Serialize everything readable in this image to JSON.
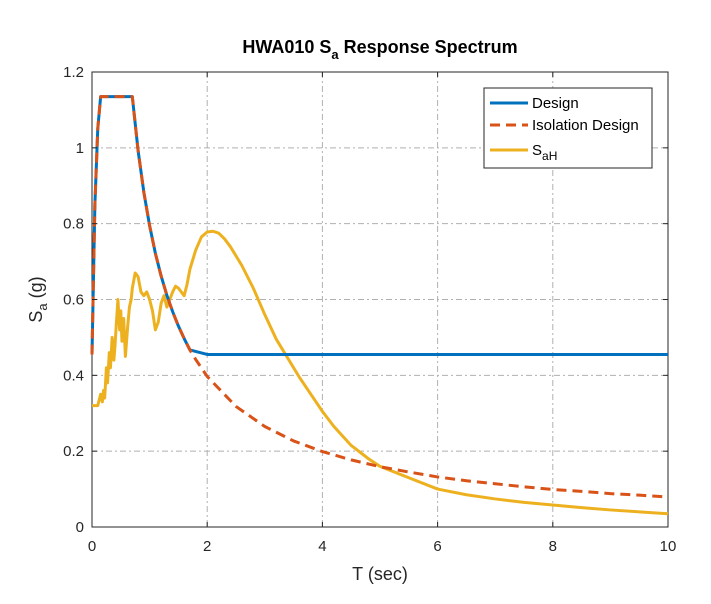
{
  "chart_data": {
    "type": "line",
    "title": {
      "main": "HWA010 S",
      "sub": "a",
      "rest": " Response Spectrum"
    },
    "xlabel": "T (sec)",
    "ylabel": {
      "main": "S",
      "sub": "a",
      "rest": " (g)"
    },
    "xlim": [
      0,
      10
    ],
    "ylim": [
      0,
      1.2
    ],
    "xticks": [
      0,
      2,
      4,
      6,
      8,
      10
    ],
    "yticks": [
      0,
      0.2,
      0.4,
      0.6,
      0.8,
      1,
      1.2
    ],
    "xtick_labels": [
      "0",
      "2",
      "4",
      "6",
      "8",
      "10"
    ],
    "ytick_labels": [
      "0",
      "0.2",
      "0.4",
      "0.6",
      "0.8",
      "1",
      "1.2"
    ],
    "grid": true,
    "legend_position": "top-right",
    "series": [
      {
        "name": "Design",
        "color": "#0072BD",
        "dash": "solid",
        "x": [
          0,
          0.05,
          0.1,
          0.15,
          0.2,
          0.3,
          0.4,
          0.5,
          0.6,
          0.7,
          0.8,
          0.9,
          1.0,
          1.1,
          1.2,
          1.3,
          1.4,
          1.5,
          1.6,
          1.7,
          2,
          3,
          4,
          5,
          6,
          7,
          8,
          9,
          10
        ],
        "y": [
          0.455,
          0.85,
          1.05,
          1.135,
          1.135,
          1.135,
          1.135,
          1.135,
          1.135,
          1.135,
          0.993,
          0.883,
          0.795,
          0.722,
          0.662,
          0.611,
          0.568,
          0.53,
          0.497,
          0.467,
          0.455,
          0.455,
          0.455,
          0.455,
          0.455,
          0.455,
          0.455,
          0.455,
          0.455
        ]
      },
      {
        "name": "Isolation Design",
        "color": "#D95319",
        "dash": "dashed",
        "x": [
          0,
          0.05,
          0.1,
          0.15,
          0.2,
          0.3,
          0.4,
          0.5,
          0.6,
          0.7,
          0.8,
          0.9,
          1.0,
          1.1,
          1.2,
          1.3,
          1.4,
          1.5,
          1.6,
          1.7,
          1.8,
          2,
          2.5,
          3,
          3.5,
          4,
          4.5,
          5,
          5.5,
          6,
          6.5,
          7,
          7.5,
          8,
          8.5,
          9,
          9.5,
          10
        ],
        "y": [
          0.455,
          0.85,
          1.05,
          1.135,
          1.135,
          1.135,
          1.135,
          1.135,
          1.135,
          1.135,
          0.993,
          0.883,
          0.795,
          0.722,
          0.662,
          0.611,
          0.568,
          0.53,
          0.497,
          0.467,
          0.442,
          0.397,
          0.318,
          0.265,
          0.227,
          0.199,
          0.177,
          0.159,
          0.145,
          0.132,
          0.122,
          0.114,
          0.106,
          0.099,
          0.094,
          0.088,
          0.084,
          0.079
        ]
      },
      {
        "name": "S",
        "name_sub": "aH",
        "color": "#EDB120",
        "dash": "solid",
        "x": [
          0,
          0.1,
          0.15,
          0.18,
          0.2,
          0.22,
          0.25,
          0.27,
          0.3,
          0.32,
          0.35,
          0.38,
          0.4,
          0.42,
          0.45,
          0.48,
          0.5,
          0.52,
          0.55,
          0.58,
          0.6,
          0.62,
          0.65,
          0.68,
          0.7,
          0.75,
          0.8,
          0.85,
          0.9,
          0.95,
          1.0,
          1.05,
          1.1,
          1.15,
          1.2,
          1.25,
          1.3,
          1.35,
          1.4,
          1.45,
          1.5,
          1.55,
          1.6,
          1.65,
          1.7,
          1.8,
          1.9,
          2.0,
          2.1,
          2.2,
          2.3,
          2.4,
          2.5,
          2.6,
          2.8,
          3.0,
          3.2,
          3.4,
          3.6,
          3.8,
          4.0,
          4.2,
          4.5,
          4.8,
          5.0,
          5.5,
          6.0,
          6.5,
          7.0,
          7.5,
          8.0,
          8.5,
          9.0,
          9.5,
          10.0
        ],
        "y": [
          0.32,
          0.32,
          0.35,
          0.33,
          0.36,
          0.34,
          0.42,
          0.38,
          0.46,
          0.42,
          0.5,
          0.44,
          0.48,
          0.53,
          0.6,
          0.52,
          0.57,
          0.49,
          0.55,
          0.45,
          0.49,
          0.53,
          0.58,
          0.6,
          0.63,
          0.67,
          0.66,
          0.62,
          0.61,
          0.62,
          0.6,
          0.57,
          0.52,
          0.54,
          0.59,
          0.61,
          0.58,
          0.6,
          0.62,
          0.635,
          0.63,
          0.62,
          0.61,
          0.64,
          0.68,
          0.73,
          0.765,
          0.778,
          0.78,
          0.775,
          0.76,
          0.74,
          0.715,
          0.69,
          0.63,
          0.56,
          0.495,
          0.445,
          0.395,
          0.35,
          0.305,
          0.265,
          0.215,
          0.18,
          0.16,
          0.13,
          0.1,
          0.085,
          0.074,
          0.065,
          0.058,
          0.051,
          0.045,
          0.04,
          0.035
        ]
      }
    ]
  }
}
